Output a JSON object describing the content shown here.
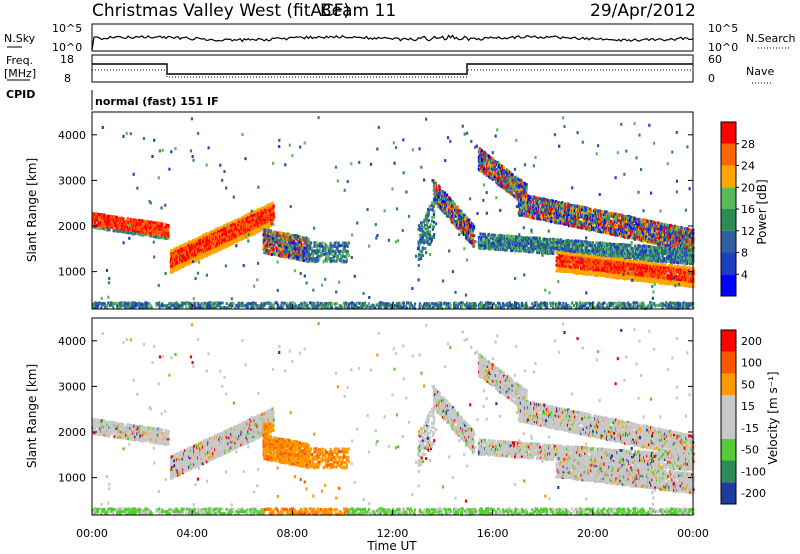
{
  "header": {
    "station": "Christmas Valley West (fitACF)",
    "beam": "Beam 11",
    "date": "29/Apr/2012"
  },
  "strip": {
    "nsky_label": "N.Sky",
    "nsky_ticks": [
      "10^5",
      "10^0"
    ],
    "nsearch_label": "N.Search",
    "nsearch_ticks": [
      "10^5",
      "10^0"
    ],
    "freq_label_1": "Freq.",
    "freq_label_2": "[MHz]",
    "freq_ticks": [
      "18",
      "8"
    ],
    "nave_label": "Nave",
    "nave_ticks": [
      "60",
      "0"
    ],
    "cpid_label": "CPID",
    "cpid_text": "normal (fast) 151 IF"
  },
  "chart_data": [
    {
      "type": "heatmap",
      "name": "power",
      "ylabel": "Slant Range [km]",
      "xlabel": "Time UT",
      "ylim": [
        180,
        4500
      ],
      "xlim": [
        0,
        24
      ],
      "yticks": [
        1000,
        2000,
        3000,
        4000
      ],
      "xticks": [
        "00:00",
        "04:00",
        "08:00",
        "12:00",
        "16:00",
        "20:00",
        "00:00"
      ],
      "colorbar": {
        "label": "Power [dB]",
        "ticks": [
          4,
          8,
          12,
          16,
          20,
          24,
          28
        ],
        "range": [
          0,
          32
        ],
        "colors": [
          "#0000ff",
          "#1e40c0",
          "#2e5fa0",
          "#2e8b57",
          "#5cb85c",
          "#ffa500",
          "#ff6600",
          "#ff0000"
        ]
      }
    },
    {
      "type": "heatmap",
      "name": "velocity",
      "ylabel": "Slant Range [km]",
      "xlabel": "Time UT",
      "ylim": [
        180,
        4500
      ],
      "xlim": [
        0,
        24
      ],
      "yticks": [
        1000,
        2000,
        3000,
        4000
      ],
      "xticks": [
        "00:00",
        "04:00",
        "08:00",
        "12:00",
        "16:00",
        "20:00",
        "00:00"
      ],
      "colorbar": {
        "label": "Velocity [m s⁻¹]",
        "ticks": [
          "200",
          "100",
          "50",
          "15",
          "-15",
          "-50",
          "-100",
          "-200"
        ],
        "colors": [
          "#1e3ca0",
          "#2e8b57",
          "#55cc33",
          "#c8c8c8",
          "#c8c8c8",
          "#ff9900",
          "#ff5500",
          "#ff0000"
        ]
      }
    }
  ]
}
